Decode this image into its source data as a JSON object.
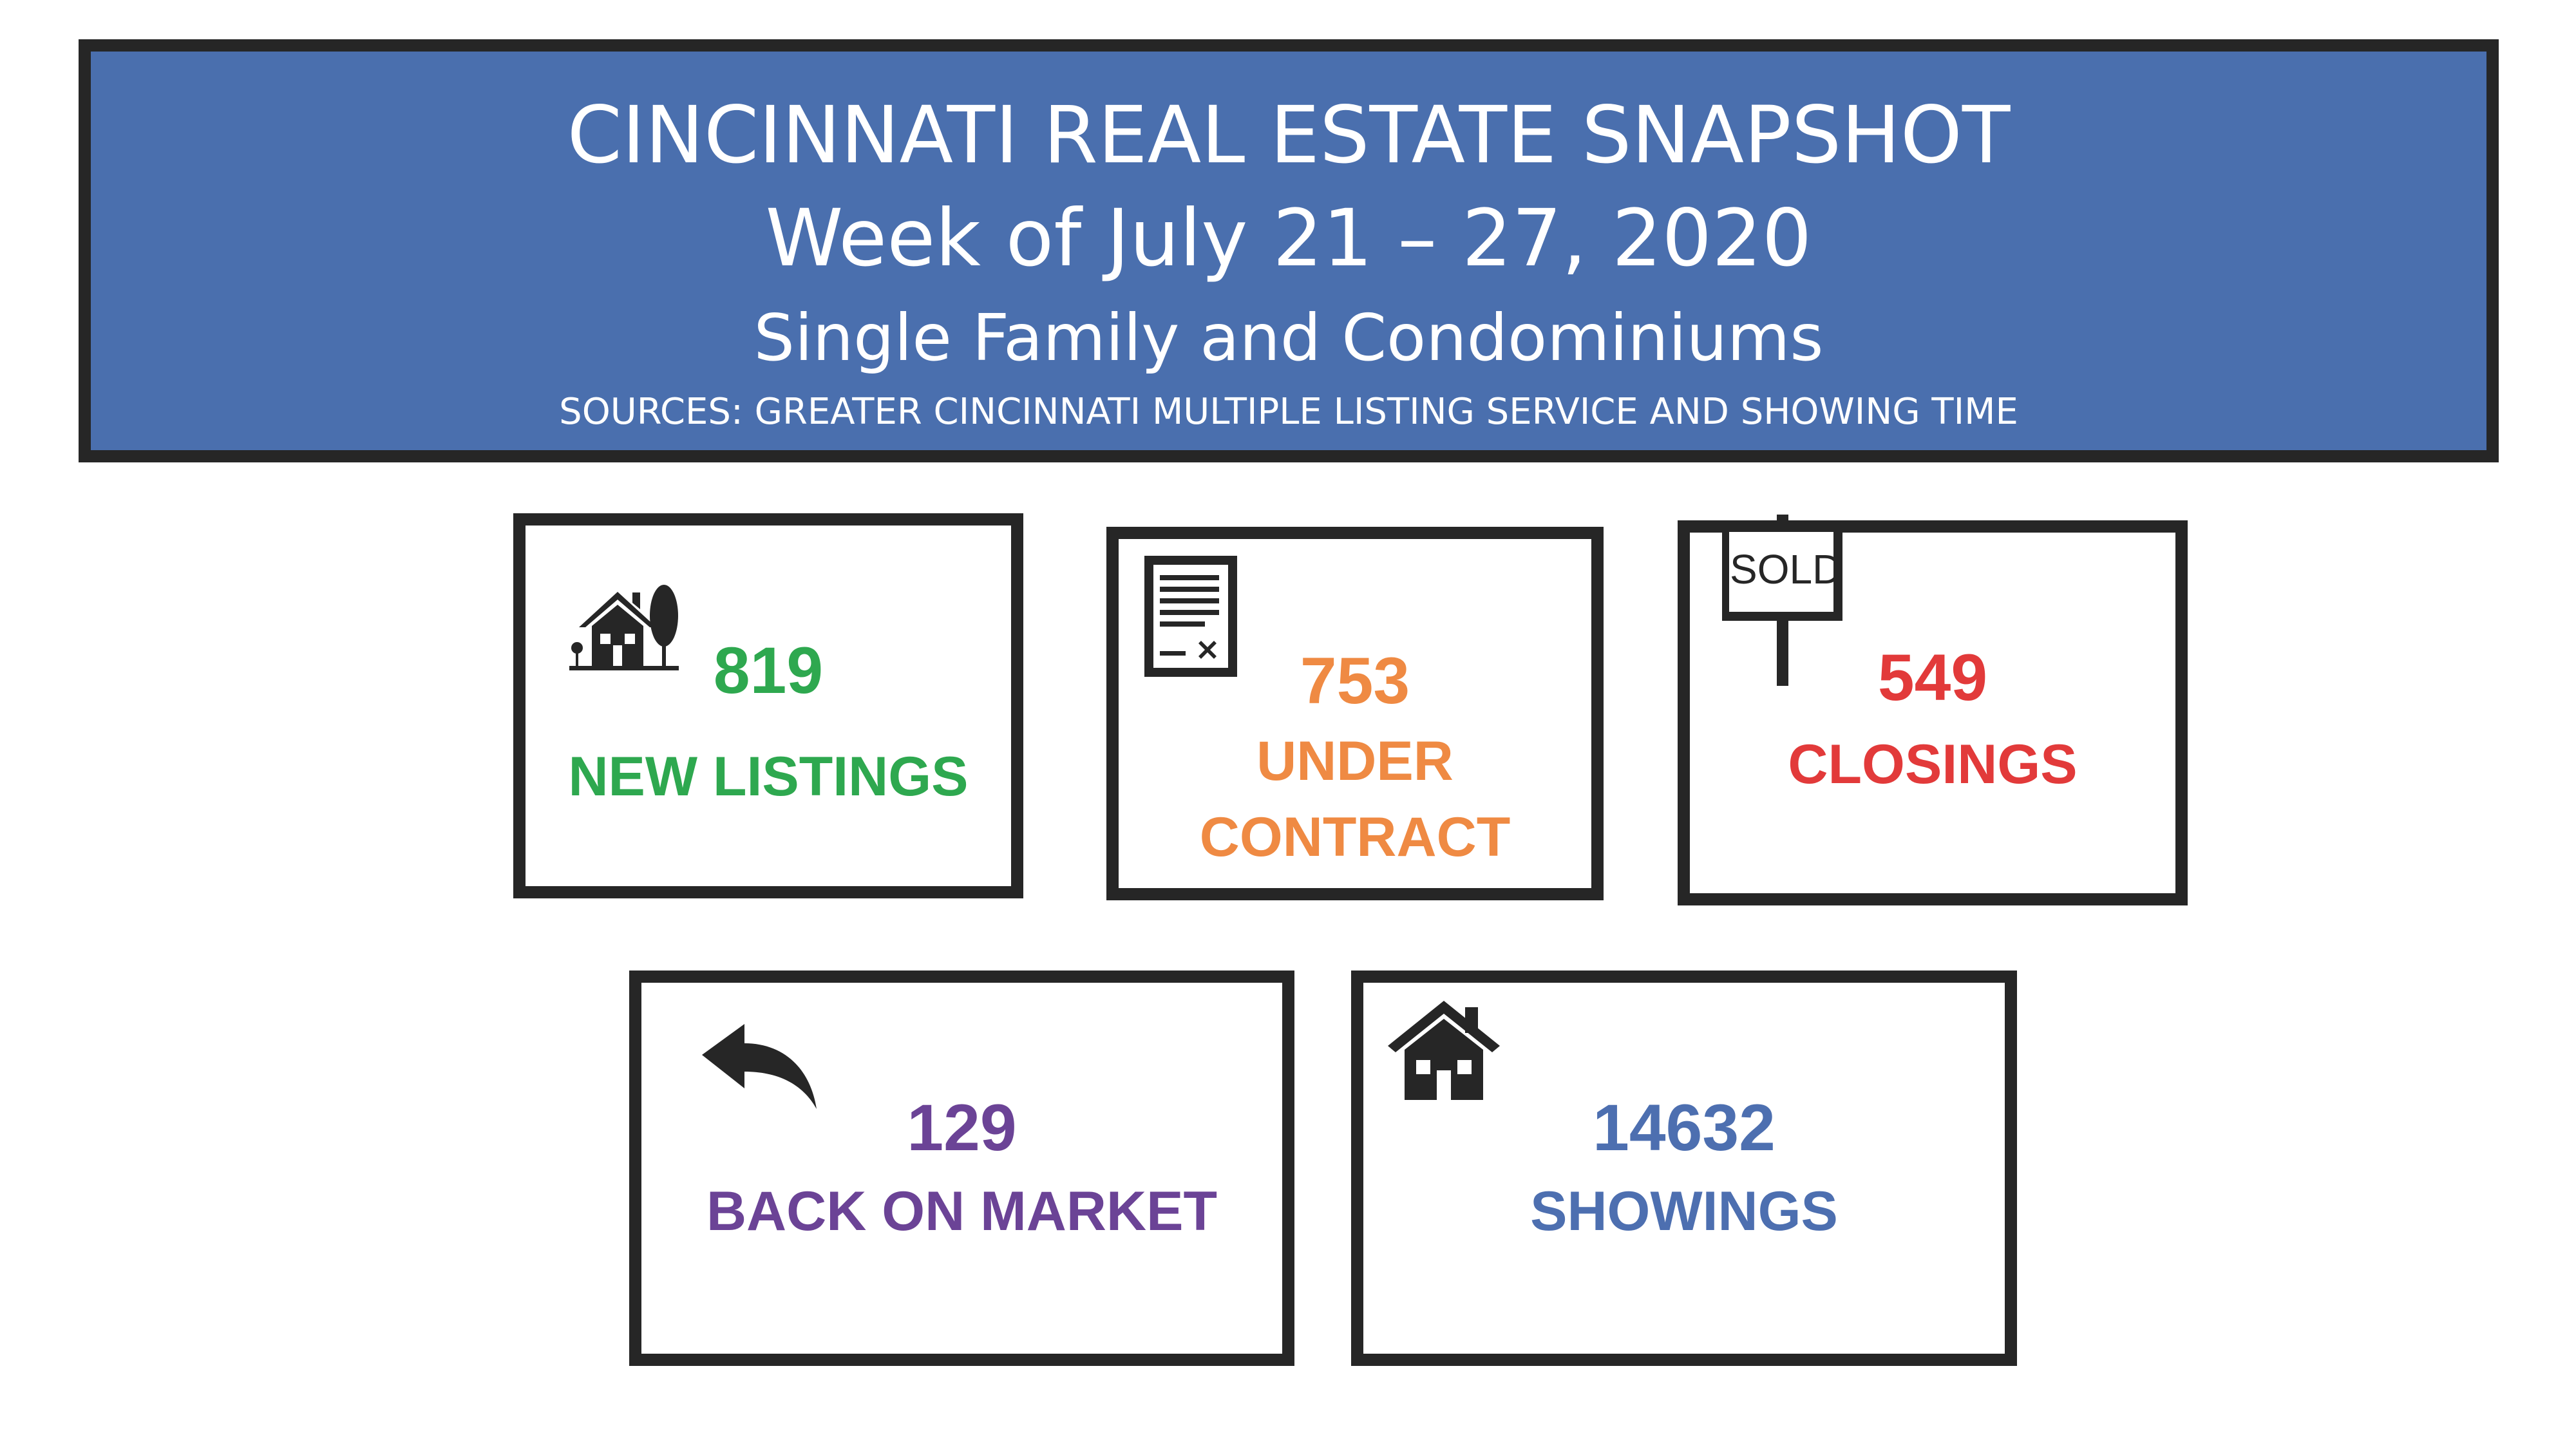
{
  "header": {
    "title": "CINCINNATI REAL ESTATE SNAPSHOT",
    "week": "Week of July 21 – 27, 2020",
    "subtitle": "Single Family and Condominiums",
    "sources": "SOURCES:  GREATER CINCINNATI MULTIPLE LISTING SERVICE AND SHOWING TIME"
  },
  "cards": [
    {
      "icon": "house-with-tree-icon",
      "value": "819",
      "label": "NEW LISTINGS",
      "color": "#2ea84f"
    },
    {
      "icon": "contract-document-icon",
      "value": "753",
      "label_line1": "UNDER",
      "label_line2": "CONTRACT",
      "color": "#ef8a43"
    },
    {
      "icon": "sold-sign-icon",
      "sign_text": "SOLD",
      "value": "549",
      "label": "CLOSINGS",
      "color": "#e23a3a"
    },
    {
      "icon": "back-arrow-icon",
      "value": "129",
      "label": "BACK ON MARKET",
      "color": "#6b4396"
    },
    {
      "icon": "house-icon",
      "value": "14632",
      "label": "SHOWINGS",
      "color": "#4d6fb0"
    }
  ]
}
